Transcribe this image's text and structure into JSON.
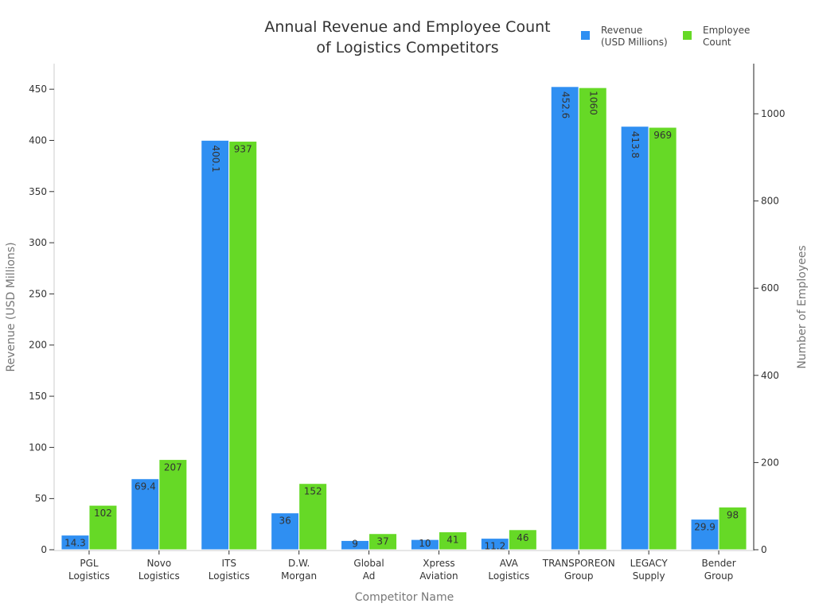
{
  "chart_data": {
    "type": "bar",
    "title": "Annual Revenue and Employee Count of Logistics Competitors",
    "title_lines": [
      "Annual Revenue and Employee Count",
      "of Logistics Competitors"
    ],
    "xlabel": "Competitor Name",
    "ylabel": "Revenue (USD Millions)",
    "y2label": "Number of Employees",
    "categories": [
      [
        "PGL",
        "Logistics"
      ],
      [
        "Novo",
        "Logistics"
      ],
      [
        "ITS",
        "Logistics"
      ],
      [
        "D.W.",
        "Morgan"
      ],
      [
        "Global",
        "Ad"
      ],
      [
        "Xpress",
        "Aviation"
      ],
      [
        "AVA",
        "Logistics"
      ],
      [
        "TRANSPOREON",
        "Group"
      ],
      [
        "LEGACY",
        "Supply"
      ],
      [
        "Bender",
        "Group"
      ]
    ],
    "series": [
      {
        "name": "Revenue (USD Millions)",
        "legend_lines": [
          "Revenue",
          "(USD Millions)"
        ],
        "axis": "left",
        "color": "#2f8ff2",
        "values": [
          14.3,
          69.4,
          400.1,
          36,
          9,
          10,
          11.2,
          452.6,
          413.8,
          29.9
        ],
        "labels": [
          "14.3",
          "69.4",
          "400.1",
          "36",
          "9",
          "10",
          "11.2",
          "452.6",
          "413.8",
          "29.9"
        ]
      },
      {
        "name": "Employee Count",
        "legend_lines": [
          "Employee",
          "Count"
        ],
        "axis": "right",
        "color": "#66d926",
        "values": [
          102,
          207,
          937,
          152,
          37,
          41,
          46,
          1060,
          969,
          98
        ],
        "labels": [
          "102",
          "207",
          "937",
          "152",
          "37",
          "41",
          "46",
          "1060",
          "969",
          "98"
        ]
      }
    ],
    "ylim": [
      0,
      475
    ],
    "y2lim": [
      0,
      1115
    ],
    "yticks": [
      0,
      50,
      100,
      150,
      200,
      250,
      300,
      350,
      400,
      450
    ],
    "y2ticks": [
      0,
      200,
      400,
      600,
      800,
      1000
    ],
    "grid": false,
    "legend_position": "top-right"
  }
}
